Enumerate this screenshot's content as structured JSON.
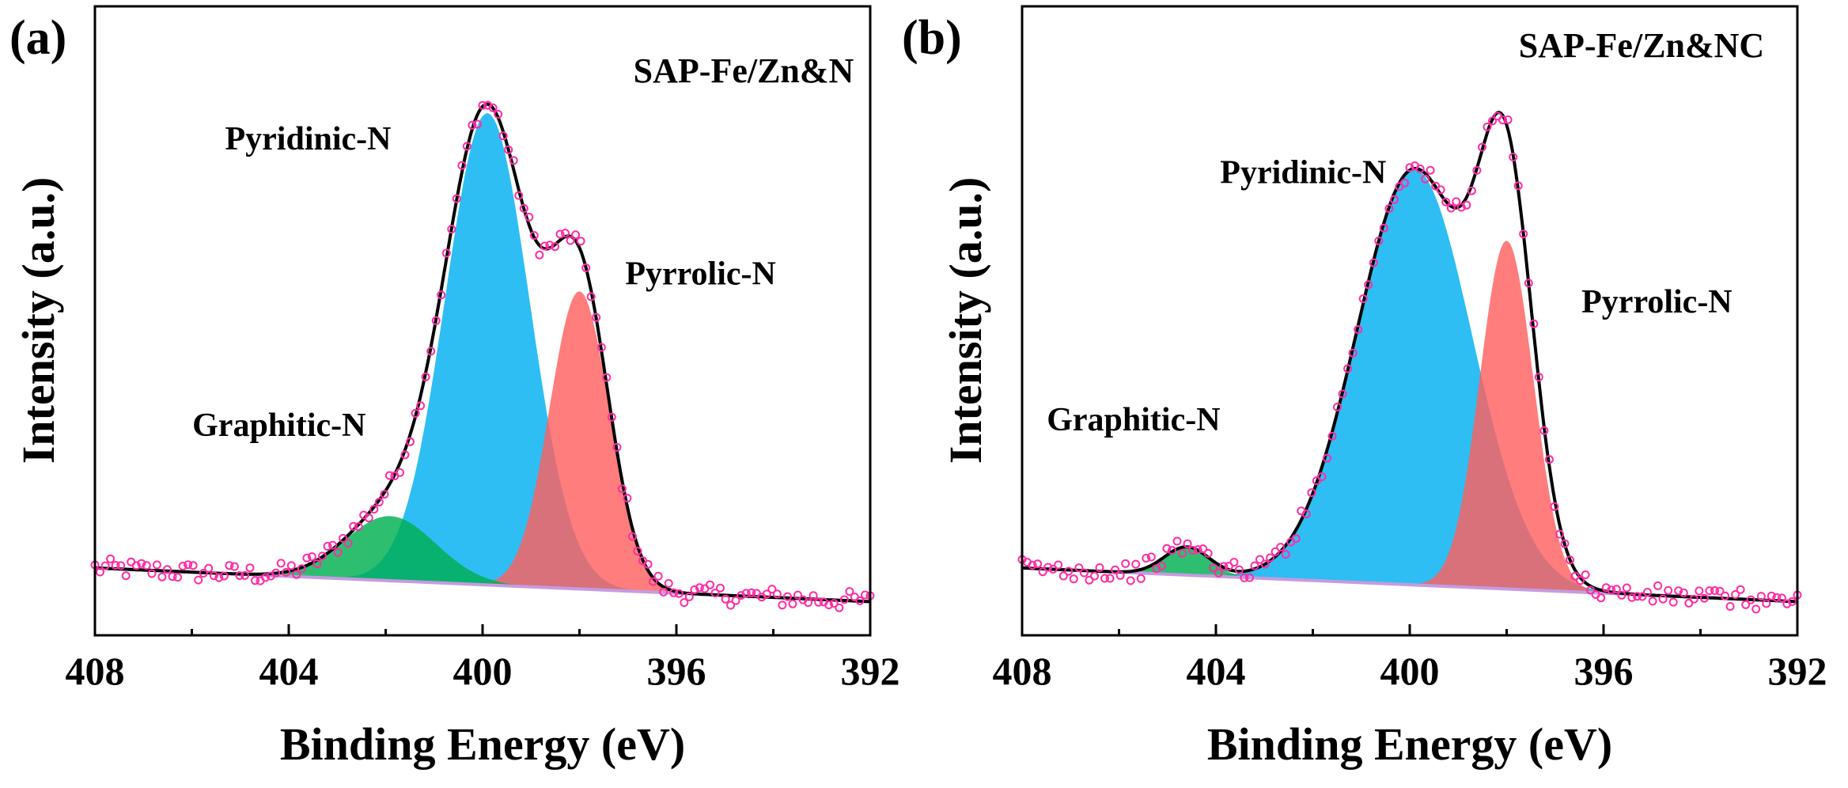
{
  "chart_data": [
    {
      "type": "area",
      "panel_label": "(a)",
      "sample_label": "SAP-Fe/Zn&N",
      "xlabel": "Binding Energy (eV)",
      "ylabel": "Intensity (a.u.)",
      "xlim": [
        408,
        392
      ],
      "x_reversed": true,
      "ylim": [
        -0.12,
        1.0
      ],
      "xticks": [
        408,
        404,
        400,
        396,
        392
      ],
      "grid": false,
      "series": [
        {
          "name": "Pyridinic-N",
          "color": "#00b0f0",
          "center": 399.9,
          "amplitude": 0.84,
          "fwhm": 2.05
        },
        {
          "name": "Pyrrolic-N",
          "color": "#ff6060",
          "center": 398.0,
          "amplitude": 0.53,
          "fwhm": 1.45
        },
        {
          "name": "Graphitic-N",
          "color": "#00b050",
          "center": 401.9,
          "amplitude": 0.115,
          "fwhm": 2.2
        }
      ],
      "baseline": {
        "x": [
          408,
          392
        ],
        "y": [
          0.0,
          -0.06
        ]
      },
      "annotations": [
        {
          "text": "Pyridinic-N",
          "x": 403.6,
          "y": 0.745,
          "anchor": "middle"
        },
        {
          "text": "Pyrrolic-N",
          "x": 395.5,
          "y": 0.505,
          "anchor": "middle"
        },
        {
          "text": "Graphitic-N",
          "x": 404.2,
          "y": 0.235,
          "anchor": "middle"
        }
      ]
    },
    {
      "type": "area",
      "panel_label": "(b)",
      "sample_label": "SAP-Fe/Zn&NC",
      "xlabel": "Binding Energy (eV)",
      "ylabel": "Intensity (a.u.)",
      "xlim": [
        408,
        392
      ],
      "x_reversed": true,
      "ylim": [
        -0.12,
        1.0
      ],
      "xticks": [
        408,
        404,
        400,
        396,
        392
      ],
      "grid": false,
      "series": [
        {
          "name": "Pyridinic-N",
          "color": "#00b0f0",
          "center": 399.9,
          "amplitude": 0.74,
          "fwhm": 2.8
        },
        {
          "name": "Pyrrolic-N",
          "color": "#ff6060",
          "center": 398.0,
          "amplitude": 0.62,
          "fwhm": 1.3
        },
        {
          "name": "Graphitic-N",
          "color": "#00b050",
          "center": 404.6,
          "amplitude": 0.05,
          "fwhm": 1.1
        }
      ],
      "baseline": {
        "x": [
          408,
          392
        ],
        "y": [
          0.0,
          -0.06
        ]
      },
      "annotations": [
        {
          "text": "Pyridinic-N",
          "x": 402.2,
          "y": 0.685,
          "anchor": "middle"
        },
        {
          "text": "Pyrrolic-N",
          "x": 394.9,
          "y": 0.455,
          "anchor": "middle"
        },
        {
          "text": "Graphitic-N",
          "x": 405.7,
          "y": 0.245,
          "anchor": "middle"
        }
      ]
    }
  ]
}
